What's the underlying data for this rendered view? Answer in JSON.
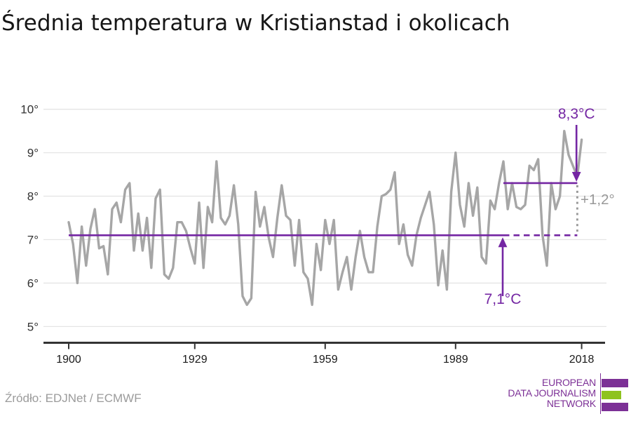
{
  "title": "Średnia temperatura w Kristianstad i okolicach",
  "footer": {
    "source": "Źródło: EDJNet / ECMWF"
  },
  "colors": {
    "accent_purple": "#7426a3",
    "line_gray": "#a6a6a6",
    "grid_gray": "#e5e5e5",
    "axis_dark": "#333333",
    "annotation_gray": "#999999",
    "logo_purple": "#7c3096",
    "logo_green": "#8ec31f"
  },
  "logo": {
    "line1": "EUROPEAN",
    "line2": "DATA JOURNALISM",
    "line3": "NETWORK"
  },
  "chart_data": {
    "type": "line",
    "title": "Średnia temperatura w Kristianstad i okolicach",
    "x_start": 1900,
    "x_end": 2018,
    "x_ticks": [
      1900,
      1929,
      1959,
      1989,
      2018
    ],
    "y_ticks": [
      5,
      6,
      7,
      8,
      9,
      10
    ],
    "y_tick_suffix": "°",
    "ylim": [
      5,
      10
    ],
    "grid": "horizontal",
    "values": [
      7.4,
      6.9,
      6.0,
      7.3,
      6.4,
      7.25,
      7.7,
      6.8,
      6.85,
      6.2,
      7.7,
      7.85,
      7.4,
      8.15,
      8.3,
      6.75,
      7.6,
      6.75,
      7.5,
      6.35,
      7.95,
      8.15,
      6.2,
      6.1,
      6.35,
      7.4,
      7.4,
      7.2,
      6.8,
      6.45,
      7.85,
      6.35,
      7.75,
      7.4,
      8.8,
      7.5,
      7.35,
      7.55,
      8.25,
      7.35,
      5.7,
      5.5,
      5.65,
      8.1,
      7.3,
      7.75,
      7.05,
      6.6,
      7.5,
      8.25,
      7.55,
      7.45,
      6.4,
      7.45,
      6.25,
      6.1,
      5.5,
      6.9,
      6.3,
      7.45,
      6.9,
      7.45,
      5.85,
      6.25,
      6.6,
      5.85,
      6.6,
      7.2,
      6.6,
      6.25,
      6.25,
      7.3,
      8.0,
      8.05,
      8.15,
      8.55,
      6.9,
      7.35,
      6.65,
      6.4,
      7.1,
      7.5,
      7.8,
      8.1,
      7.35,
      5.95,
      6.75,
      5.85,
      8.1,
      9.0,
      7.8,
      7.3,
      8.3,
      7.55,
      8.2,
      6.6,
      6.45,
      7.9,
      7.7,
      8.3,
      8.8,
      7.7,
      8.3,
      7.75,
      7.7,
      7.8,
      8.7,
      8.6,
      8.85,
      7.1,
      6.4,
      8.3,
      7.7,
      8.0,
      9.5,
      8.95,
      8.7,
      8.45,
      9.3
    ],
    "annotations": {
      "mean_early": {
        "value": 7.1,
        "label": "7,1°C",
        "from": 1900,
        "to": 2000,
        "dash_to": 2017
      },
      "mean_late": {
        "value": 8.3,
        "label": "8,3°C",
        "from": 2000,
        "to": 2017
      },
      "delta": {
        "label": "+1,2°"
      }
    }
  }
}
